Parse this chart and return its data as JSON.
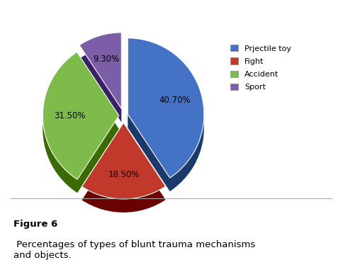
{
  "labels": [
    "Prjectile toy",
    "Fight",
    "Accident",
    "Sport"
  ],
  "values": [
    40.7,
    18.5,
    31.5,
    9.3
  ],
  "colors": [
    "#4472c4",
    "#c0392b",
    "#7dbb4a",
    "#7b5ea7"
  ],
  "dark_colors": [
    "#1a3a6b",
    "#6b0000",
    "#3a6b00",
    "#3b1f6b"
  ],
  "explode": [
    0.05,
    0.08,
    0.05,
    0.08
  ],
  "startangle": 90,
  "pct_labels": [
    "40.70%",
    "18.50%",
    "31.50%",
    "9.30%"
  ],
  "legend_labels": [
    "Prjectile toy",
    "Fight",
    "Accident",
    "Sport"
  ],
  "figure_caption_bold": "Figure 6",
  "figure_caption_normal": " Percentages of types of blunt trauma mechanisms\nand objects.",
  "background_color": "#ffffff",
  "box_edge_color": "#bbbbbb",
  "label_fontsize": 8.5,
  "legend_fontsize": 8,
  "caption_fontsize": 9.5,
  "pie_depth": 0.06,
  "shadow_color": "#111133"
}
